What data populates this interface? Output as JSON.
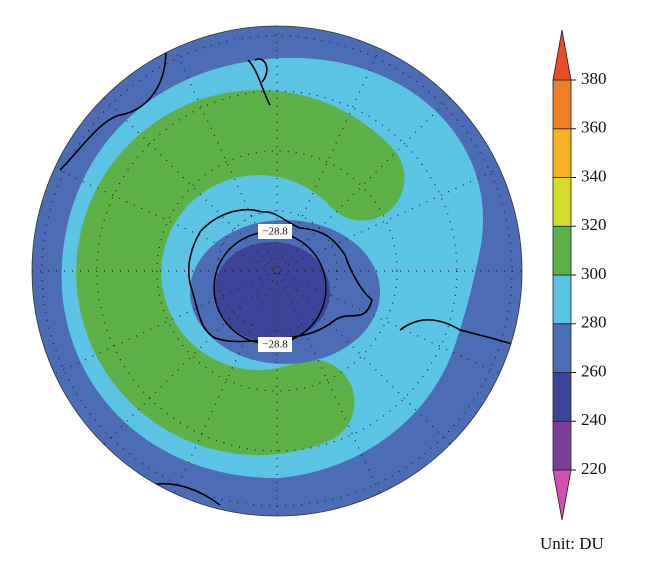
{
  "map": {
    "contour_labels": [
      "−28.8",
      "−28.8"
    ]
  },
  "colorbar": {
    "ticks": [
      220,
      240,
      260,
      280,
      300,
      320,
      340,
      360,
      380
    ],
    "colors": [
      "#d050b6",
      "#7b3f98",
      "#3d4399",
      "#4d6cb6",
      "#5bc3e3",
      "#5db146",
      "#d4dc2a",
      "#f5b321",
      "#f07f2a",
      "#e94d27"
    ],
    "unit_label": "Unit: DU"
  }
}
